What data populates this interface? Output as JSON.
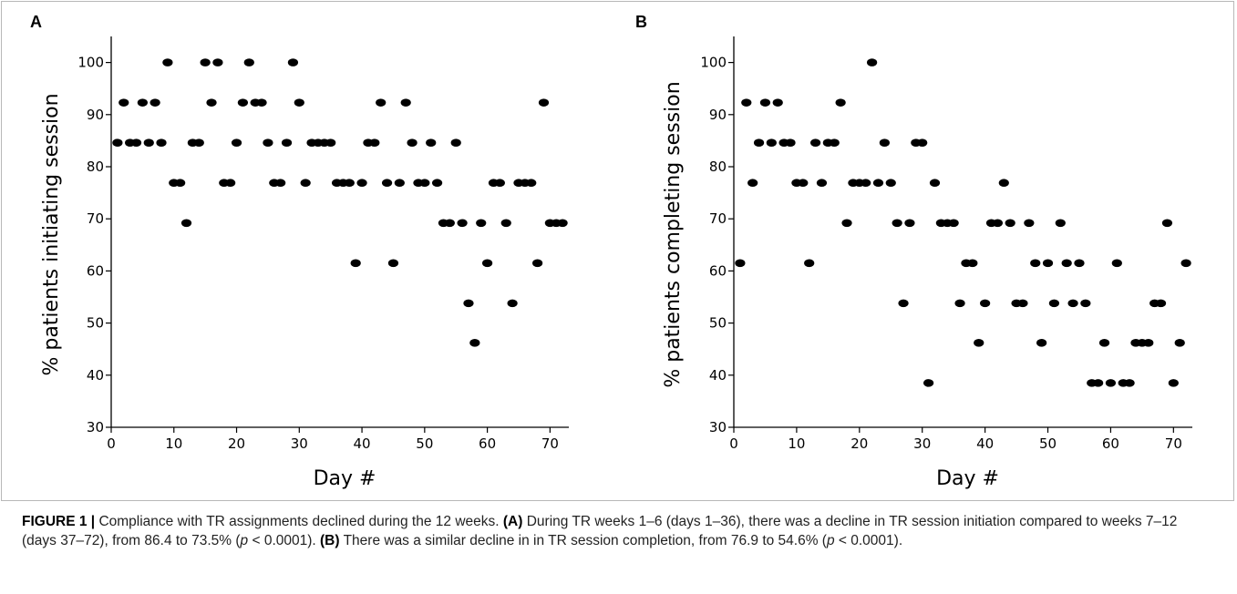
{
  "figure": {
    "panel_a_letter": "A",
    "panel_b_letter": "B"
  },
  "caption": {
    "label": "FIGURE 1 |",
    "text1": " Compliance with TR assignments declined during the 12 weeks. ",
    "a_tag": "(A)",
    "text2": " During TR weeks 1–6 (days 1–36), there was a decline in TR session initiation compared to weeks 7–12 (days 37–72), from 86.4 to 73.5% (",
    "p1": "p",
    "text3": " < 0.0001). ",
    "b_tag": "(B)",
    "text4": " There was a similar decline in in TR session completion, from 76.9 to 54.6% (",
    "p2": "p",
    "text5": " < 0.0001)."
  },
  "chart_data": [
    {
      "type": "scatter",
      "panel": "A",
      "xlabel": "Day #",
      "ylabel": "% patients initiating session",
      "xlim": [
        0,
        73
      ],
      "ylim": [
        30,
        105
      ],
      "xticks": [
        "0",
        "10",
        "20",
        "30",
        "40",
        "50",
        "60",
        "70"
      ],
      "yticks": [
        "30",
        "40",
        "50",
        "60",
        "70",
        "80",
        "90",
        "100"
      ],
      "marker_color": "#000000",
      "x": [
        1,
        2,
        3,
        4,
        5,
        6,
        7,
        8,
        9,
        10,
        11,
        12,
        13,
        14,
        15,
        16,
        17,
        18,
        19,
        20,
        21,
        22,
        23,
        24,
        25,
        26,
        27,
        28,
        29,
        30,
        31,
        32,
        33,
        34,
        35,
        36,
        37,
        38,
        39,
        40,
        41,
        42,
        43,
        44,
        45,
        46,
        47,
        48,
        49,
        50,
        51,
        52,
        53,
        54,
        55,
        56,
        57,
        58,
        59,
        60,
        61,
        62,
        63,
        64,
        65,
        66,
        67,
        68,
        69,
        70,
        71,
        72
      ],
      "y": [
        84.6,
        92.3,
        84.6,
        84.6,
        92.3,
        84.6,
        92.3,
        84.6,
        100,
        76.9,
        76.9,
        69.2,
        84.6,
        84.6,
        100,
        92.3,
        100,
        76.9,
        76.9,
        84.6,
        92.3,
        100,
        92.3,
        92.3,
        84.6,
        76.9,
        76.9,
        84.6,
        100,
        92.3,
        76.9,
        84.6,
        84.6,
        84.6,
        84.6,
        76.9,
        76.9,
        76.9,
        61.5,
        76.9,
        84.6,
        84.6,
        92.3,
        76.9,
        61.5,
        76.9,
        92.3,
        84.6,
        76.9,
        76.9,
        84.6,
        76.9,
        69.2,
        69.2,
        84.6,
        69.2,
        53.8,
        46.2,
        69.2,
        61.5,
        76.9,
        76.9,
        69.2,
        53.8,
        76.9,
        76.9,
        76.9,
        61.5,
        92.3,
        69.2,
        69.2,
        69.2
      ]
    },
    {
      "type": "scatter",
      "panel": "B",
      "xlabel": "Day #",
      "ylabel": "% patients completing session",
      "xlim": [
        0,
        73
      ],
      "ylim": [
        30,
        105
      ],
      "xticks": [
        "0",
        "10",
        "20",
        "30",
        "40",
        "50",
        "60",
        "70"
      ],
      "yticks": [
        "30",
        "40",
        "50",
        "60",
        "70",
        "80",
        "90",
        "100"
      ],
      "marker_color": "#000000",
      "x": [
        1,
        2,
        3,
        4,
        5,
        6,
        7,
        8,
        9,
        10,
        11,
        12,
        13,
        14,
        15,
        16,
        17,
        18,
        19,
        20,
        21,
        22,
        23,
        24,
        25,
        26,
        27,
        28,
        29,
        30,
        31,
        32,
        33,
        34,
        35,
        36,
        37,
        38,
        39,
        40,
        41,
        42,
        43,
        44,
        45,
        46,
        47,
        48,
        49,
        50,
        51,
        52,
        53,
        54,
        55,
        56,
        57,
        58,
        59,
        60,
        61,
        62,
        63,
        64,
        65,
        66,
        67,
        68,
        69,
        70,
        71,
        72
      ],
      "y": [
        61.5,
        92.3,
        76.9,
        84.6,
        92.3,
        84.6,
        92.3,
        84.6,
        84.6,
        76.9,
        76.9,
        61.5,
        84.6,
        76.9,
        84.6,
        84.6,
        92.3,
        69.2,
        76.9,
        76.9,
        76.9,
        100,
        76.9,
        84.6,
        76.9,
        69.2,
        53.8,
        69.2,
        84.6,
        84.6,
        38.5,
        76.9,
        69.2,
        69.2,
        69.2,
        53.8,
        61.5,
        61.5,
        46.2,
        53.8,
        69.2,
        69.2,
        76.9,
        69.2,
        53.8,
        53.8,
        69.2,
        61.5,
        46.2,
        61.5,
        53.8,
        69.2,
        61.5,
        53.8,
        61.5,
        53.8,
        38.5,
        38.5,
        46.2,
        38.5,
        61.5,
        38.5,
        38.5,
        46.2,
        46.2,
        46.2,
        53.8,
        53.8,
        69.2,
        38.5,
        46.2,
        61.5
      ]
    }
  ]
}
